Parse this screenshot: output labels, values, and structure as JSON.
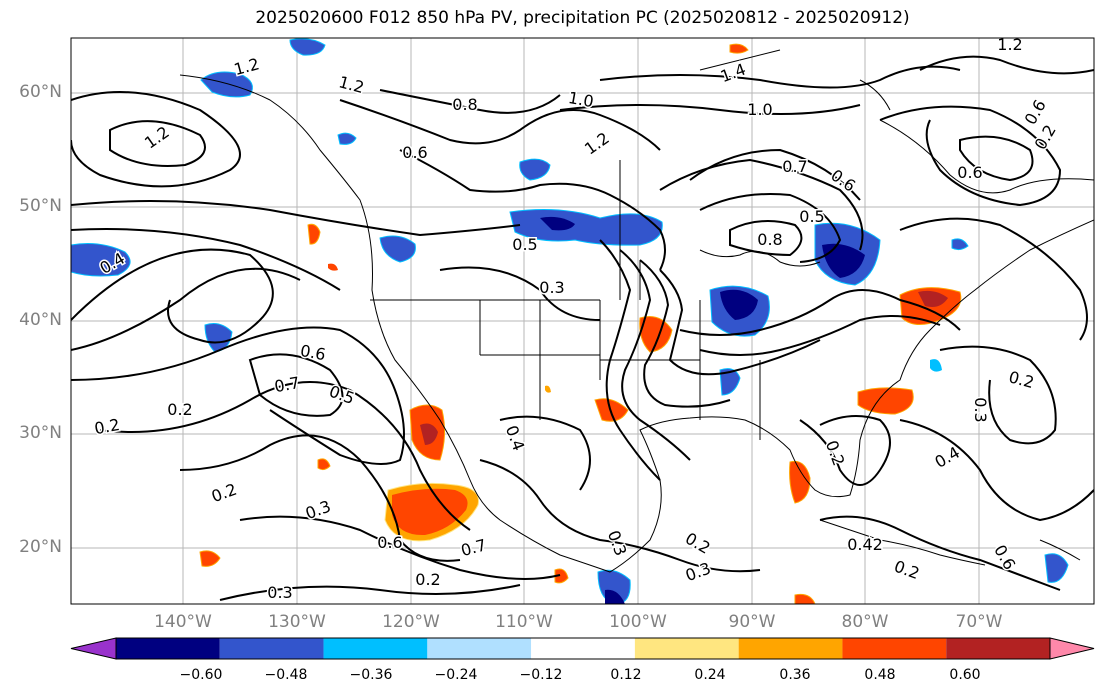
{
  "title": "2025020600 F012 850 hPa PV, precipitation PC (2025020812 - 2025020912)",
  "latitude_labels": [
    "60°N",
    "50°N",
    "40°N",
    "30°N",
    "20°N"
  ],
  "longitude_labels": [
    "140°W",
    "130°W",
    "120°W",
    "110°W",
    "100°W",
    "90°W",
    "80°W",
    "70°W"
  ],
  "colorbar": {
    "ticks": [
      "−0.60",
      "−0.48",
      "−0.36",
      "−0.24",
      "−0.12",
      "0.12",
      "0.24",
      "0.36",
      "0.48",
      "0.60"
    ],
    "colors": [
      "#9932cc",
      "#000080",
      "#3355cc",
      "#00bfff",
      "#b0e0ff",
      "#ffffff",
      "#ffe680",
      "#ffa500",
      "#ff4500",
      "#b22222",
      "#ff88aa"
    ]
  },
  "contour_labels": [
    "1.2",
    "1.2",
    "1.4",
    "1.2",
    "1.2",
    "1.0",
    "1.0",
    "0.8",
    "0.6",
    "0.6",
    "1.2",
    "0.6",
    "0.7",
    "0.6",
    "0.5",
    "0.5",
    "0.8",
    "0.4",
    "0.2",
    "0.3",
    "0.6",
    "0.7",
    "0.5",
    "0.2",
    "0.2",
    "0.4",
    "0.3",
    "0.6",
    "0.7",
    "0.3",
    "0.2",
    "0.3",
    "0.2",
    "0.3",
    "0.4",
    "0.2",
    "0.3",
    "0.2",
    "0.2",
    "0.42",
    "0.2",
    "0.6"
  ]
}
